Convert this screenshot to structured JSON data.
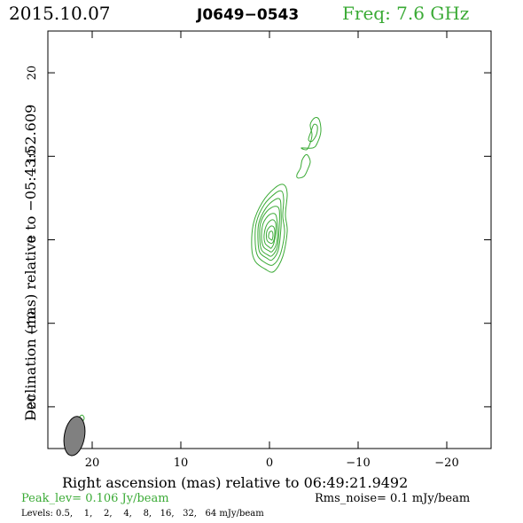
{
  "header": {
    "date": "2015.10.07",
    "source": "J0649−0543",
    "freq": "Freq: 7.6 GHz"
  },
  "footer": {
    "peak": "Peak_lev=  0.106 Jy/beam",
    "rms": "Rms_noise=   0.1 mJy/beam",
    "levels": "Levels: 0.5,    1,    2,    4,    8,   16,   32,   64 mJy/beam"
  },
  "colors": {
    "green": "#3aaa35",
    "beam": "#808080",
    "ink": "#000000"
  },
  "chart_data": {
    "type": "contour",
    "xlabel": "Right ascension (mas) relative to 06:49:21.9492",
    "ylabel": "Declination (mas) relative to −05:43:52.609",
    "xlim": [
      25,
      -25
    ],
    "ylim": [
      -25,
      25
    ],
    "xticks": [
      20,
      10,
      0,
      -10,
      -20
    ],
    "xtick_labels": [
      "20",
      "10",
      "0",
      "−10",
      "−20"
    ],
    "yticks": [
      20,
      10,
      0,
      -10,
      -20
    ],
    "ytick_labels": [
      "20",
      "10",
      "0",
      "−10",
      "−20"
    ],
    "beam": {
      "x": 22,
      "y": -23.5,
      "major_mas": 2.5,
      "minor_mas": 1.2,
      "pa_deg": 10
    },
    "contour_levels_mJy": [
      0.5,
      1,
      2,
      4,
      8,
      16,
      32,
      64
    ],
    "core": {
      "x": -0.3,
      "y": 0.3
    },
    "components": [
      {
        "name": "core",
        "contours": [
          [
            [
              0.5,
              -3.5
            ],
            [
              1.6,
              -2.6
            ],
            [
              2.0,
              -1.0
            ],
            [
              1.8,
              2.0
            ],
            [
              0.8,
              4.5
            ],
            [
              -0.6,
              6.2
            ],
            [
              -1.6,
              6.6
            ],
            [
              -2.0,
              5.5
            ],
            [
              -1.8,
              3.0
            ],
            [
              -2.0,
              1.0
            ],
            [
              -1.5,
              -2.0
            ],
            [
              -0.5,
              -3.8
            ]
          ],
          [
            [
              0.4,
              -2.8
            ],
            [
              1.3,
              -2.0
            ],
            [
              1.6,
              -0.5
            ],
            [
              1.5,
              2.0
            ],
            [
              0.6,
              4.2
            ],
            [
              -0.7,
              5.6
            ],
            [
              -1.4,
              5.8
            ],
            [
              -1.6,
              4.8
            ],
            [
              -1.5,
              2.8
            ],
            [
              -1.7,
              0.8
            ],
            [
              -1.2,
              -1.8
            ],
            [
              -0.4,
              -3.0
            ]
          ],
          [
            [
              0.3,
              -2.2
            ],
            [
              1.1,
              -1.5
            ],
            [
              1.3,
              0.0
            ],
            [
              1.2,
              2.0
            ],
            [
              0.4,
              3.8
            ],
            [
              -0.6,
              4.8
            ],
            [
              -1.2,
              4.8
            ],
            [
              -1.3,
              3.5
            ],
            [
              -1.3,
              1.5
            ],
            [
              -1.0,
              -1.2
            ],
            [
              -0.3,
              -2.4
            ]
          ],
          [
            [
              0.2,
              -1.8
            ],
            [
              0.9,
              -1.2
            ],
            [
              1.1,
              0.2
            ],
            [
              1.0,
              2.0
            ],
            [
              0.3,
              3.4
            ],
            [
              -0.6,
              4.0
            ],
            [
              -1.1,
              3.6
            ],
            [
              -1.1,
              1.6
            ],
            [
              -0.9,
              -0.8
            ],
            [
              -0.3,
              -1.9
            ]
          ],
          [
            [
              0.1,
              -1.3
            ],
            [
              0.7,
              -0.8
            ],
            [
              0.9,
              0.4
            ],
            [
              0.7,
              2.0
            ],
            [
              0.0,
              3.0
            ],
            [
              -0.7,
              3.0
            ],
            [
              -0.9,
              1.5
            ],
            [
              -0.8,
              -0.4
            ],
            [
              -0.3,
              -1.4
            ]
          ],
          [
            [
              0.0,
              -0.9
            ],
            [
              0.5,
              -0.4
            ],
            [
              0.6,
              0.6
            ],
            [
              0.3,
              1.8
            ],
            [
              -0.3,
              2.4
            ],
            [
              -0.7,
              2.0
            ],
            [
              -0.7,
              0.8
            ],
            [
              -0.5,
              -0.4
            ],
            [
              -0.2,
              -1.0
            ]
          ],
          [
            [
              -0.1,
              -0.4
            ],
            [
              0.3,
              0.0
            ],
            [
              0.3,
              1.0
            ],
            [
              -0.1,
              1.6
            ],
            [
              -0.5,
              1.5
            ],
            [
              -0.6,
              0.6
            ],
            [
              -0.4,
              -0.3
            ]
          ],
          [
            [
              -0.2,
              0.0
            ],
            [
              0.1,
              0.3
            ],
            [
              0.0,
              0.9
            ],
            [
              -0.3,
              1.0
            ],
            [
              -0.4,
              0.5
            ],
            [
              -0.3,
              0.0
            ]
          ]
        ]
      },
      {
        "name": "jet-knot-a",
        "contours": [
          [
            [
              -3.2,
              7.4
            ],
            [
              -3.9,
              7.6
            ],
            [
              -4.3,
              8.4
            ],
            [
              -4.6,
              9.4
            ],
            [
              -4.2,
              10.2
            ],
            [
              -3.7,
              9.6
            ],
            [
              -3.5,
              8.6
            ],
            [
              -3.1,
              7.8
            ]
          ]
        ]
      },
      {
        "name": "jet-knot-b",
        "contours": [
          [
            [
              -3.6,
              11.0
            ],
            [
              -4.2,
              10.8
            ],
            [
              -4.6,
              11.6
            ],
            [
              -4.8,
              12.6
            ],
            [
              -4.6,
              13.8
            ],
            [
              -5.1,
              14.6
            ],
            [
              -5.6,
              14.4
            ],
            [
              -5.8,
              13.0
            ],
            [
              -5.4,
              11.6
            ],
            [
              -4.9,
              11.0
            ]
          ],
          [
            [
              -4.4,
              12.0
            ],
            [
              -4.8,
              11.8
            ],
            [
              -5.3,
              12.6
            ],
            [
              -5.4,
              13.6
            ],
            [
              -5.0,
              13.8
            ],
            [
              -4.7,
              13.0
            ]
          ]
        ]
      },
      {
        "name": "beam-marker",
        "contours": [
          [
            [
              21.4,
              -21.2
            ],
            [
              21.2,
              -21.8
            ],
            [
              20.9,
              -21.4
            ],
            [
              21.1,
              -21.0
            ]
          ]
        ]
      }
    ]
  }
}
